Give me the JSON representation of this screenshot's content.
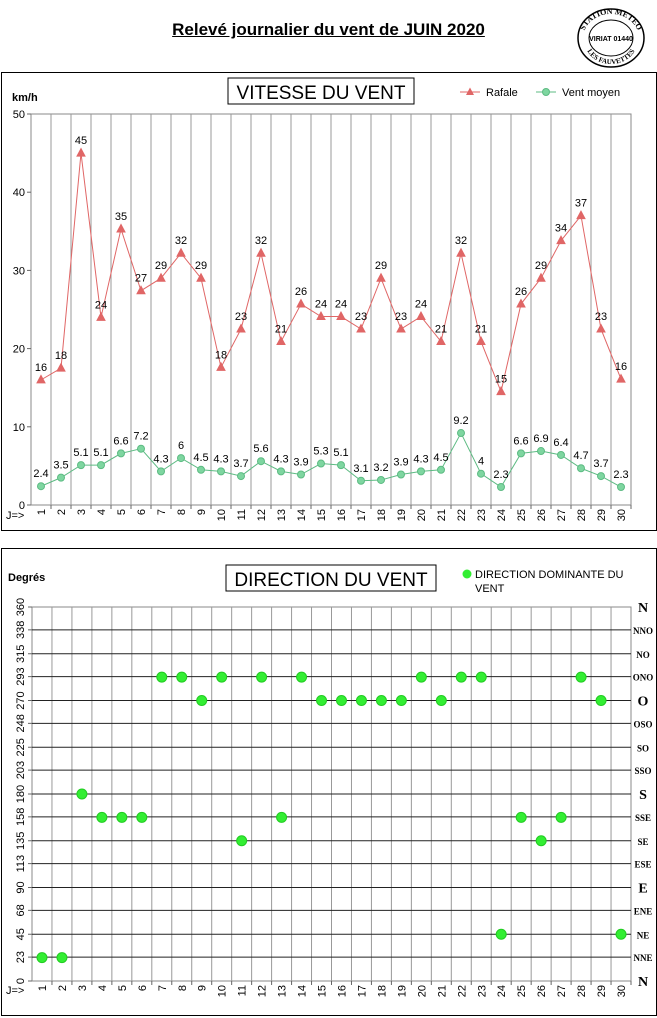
{
  "page": {
    "title": "Relevé journalier du vent de JUIN 2020",
    "stamp_lines": [
      "STATION METEO",
      "VIRIAT 01440",
      "LES FAUVETTES"
    ]
  },
  "chart_data": [
    {
      "type": "line",
      "title": "VITESSE DU VENT",
      "ylabel": "km/h",
      "xlabel_prefix": "J=>",
      "ylim": [
        0,
        50
      ],
      "yticks": [
        0,
        10,
        20,
        30,
        40,
        50
      ],
      "grid": "vertical",
      "legend_position": "top-right",
      "x": [
        1,
        2,
        3,
        4,
        5,
        6,
        7,
        8,
        9,
        10,
        11,
        12,
        13,
        14,
        15,
        16,
        17,
        18,
        19,
        20,
        21,
        22,
        23,
        24,
        25,
        26,
        27,
        28,
        29,
        30
      ],
      "series": [
        {
          "name": "Rafale",
          "color": "#e06666",
          "marker": "triangle",
          "values": [
            16,
            17.5,
            45,
            24,
            35.3,
            27.4,
            29,
            32.2,
            29,
            17.6,
            22.5,
            32.2,
            20.9,
            25.7,
            24.1,
            24.1,
            22.5,
            29,
            22.5,
            24.1,
            20.9,
            32.2,
            20.9,
            14.5,
            25.7,
            29,
            33.8,
            37,
            22.5,
            16.1
          ],
          "labels": [
            "16",
            "18",
            "45",
            "24",
            "35",
            "27",
            "29",
            "32",
            "29",
            "18",
            "23",
            "32",
            "21",
            "26",
            "24",
            "24",
            "23",
            "29",
            "23",
            "24",
            "21",
            "32",
            "21",
            "15",
            "26",
            "29",
            "34",
            "37",
            "23",
            "16"
          ]
        },
        {
          "name": "Vent moyen",
          "color": "#5dbb83",
          "marker": "circle",
          "values": [
            2.4,
            3.5,
            5.1,
            5.1,
            6.6,
            7.2,
            4.3,
            6,
            4.5,
            4.3,
            3.7,
            5.6,
            4.3,
            3.9,
            5.3,
            5.1,
            3.1,
            3.2,
            3.9,
            4.3,
            4.5,
            9.2,
            4,
            2.3,
            6.6,
            6.9,
            6.4,
            4.7,
            3.7,
            2.3
          ],
          "labels": [
            "2.4",
            "3.5",
            "5.1",
            "5.1",
            "6.6",
            "7.2",
            "4.3",
            "6",
            "4.5",
            "4.3",
            "3.7",
            "5.6",
            "4.3",
            "3.9",
            "5.3",
            "5.1",
            "3.1",
            "3.2",
            "3.9",
            "4.3",
            "4.5",
            "9.2",
            "4",
            "2.3",
            "6.6",
            "6.9",
            "6.4",
            "4.7",
            "3.7",
            "2.3"
          ]
        }
      ]
    },
    {
      "type": "scatter",
      "title": "DIRECTION DU VENT",
      "ylabel": "Degrés",
      "xlabel_prefix": "J=>",
      "ylim": [
        0,
        360
      ],
      "yticks": [
        0,
        23,
        45,
        68,
        90,
        113,
        135,
        158,
        180,
        203,
        225,
        248,
        270,
        293,
        315,
        338,
        360
      ],
      "compass": [
        "N",
        "NNE",
        "NE",
        "ENE",
        "E",
        "ESE",
        "SE",
        "SSE",
        "S",
        "SSO",
        "SO",
        "OSO",
        "O",
        "ONO",
        "NO",
        "NNO",
        "N"
      ],
      "grid": "both",
      "legend_position": "top-right",
      "x": [
        1,
        2,
        3,
        4,
        5,
        6,
        7,
        8,
        9,
        10,
        11,
        12,
        13,
        14,
        15,
        16,
        17,
        18,
        19,
        20,
        21,
        22,
        23,
        24,
        25,
        26,
        27,
        28,
        29,
        30
      ],
      "series": [
        {
          "name": "DIRECTION DOMINANTE DU VENT",
          "color": "#33ee33",
          "marker": "circle",
          "values": [
            22.5,
            22.5,
            180,
            157.5,
            157.5,
            157.5,
            292.5,
            292.5,
            270,
            292.5,
            135,
            292.5,
            157.5,
            292.5,
            270,
            270,
            270,
            270,
            270,
            292.5,
            270,
            292.5,
            292.5,
            45,
            157.5,
            135,
            157.5,
            292.5,
            270,
            45
          ]
        }
      ]
    }
  ]
}
